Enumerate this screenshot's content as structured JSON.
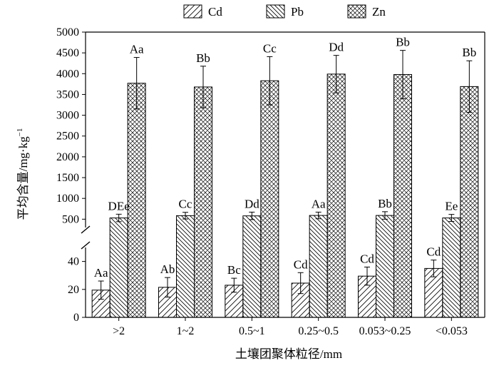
{
  "chart_data": {
    "type": "bar",
    "categories": [
      ">2",
      "1~2",
      "0.5~1",
      "0.25~0.5",
      "0.053~0.25",
      "<0.053"
    ],
    "series": [
      {
        "name": "Cd",
        "values": [
          19.5,
          21.5,
          23,
          24.5,
          29.5,
          35
        ],
        "errors": [
          6.5,
          7,
          5,
          7.5,
          6.5,
          6
        ],
        "labels": [
          "Aa",
          "Ab",
          "Bc",
          "Cd",
          "Cd",
          "Cd"
        ]
      },
      {
        "name": "Pb",
        "values": [
          530,
          585,
          580,
          590,
          590,
          530
        ],
        "errors": [
          90,
          80,
          90,
          80,
          90,
          85
        ],
        "labels": [
          "DEe",
          "Cc",
          "Dd",
          "Aa",
          "Bb",
          "Ee"
        ]
      },
      {
        "name": "Zn",
        "values": [
          3770,
          3680,
          3830,
          3990,
          3980,
          3690
        ],
        "errors": [
          620,
          500,
          580,
          450,
          580,
          620
        ],
        "labels": [
          "Aa",
          "Bb",
          "Cc",
          "Dd",
          "Bb",
          "Bb"
        ]
      }
    ],
    "xlabel": "土壤团聚体粒径/mm",
    "ylabel": {
      "main": "平均含量/mg·kg",
      "sup": "−1"
    },
    "axis_break": true,
    "lower_range": [
      0,
      50
    ],
    "upper_range": [
      300,
      5000
    ],
    "lower_ticks": [
      "0",
      "20",
      "40"
    ],
    "upper_ticks": [
      "500",
      "1000",
      "1500",
      "2000",
      "2500",
      "3000",
      "3500",
      "4000",
      "4500",
      "5000"
    ],
    "legend_position": "top",
    "grid": false
  }
}
